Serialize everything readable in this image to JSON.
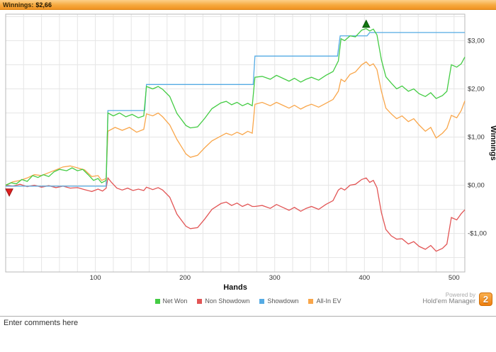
{
  "window": {
    "title_label": "Winnings:",
    "title_value": "$2,66"
  },
  "comments": {
    "text": "Enter comments here"
  },
  "branding": {
    "powered_by": "Powered by",
    "app_name": "Hold'em Manager",
    "badge": "2",
    "badge_color": "#ef7f0e"
  },
  "chart_data": {
    "type": "line",
    "title": "Winnings: $2,66",
    "xlabel": "Hands",
    "ylabel": "Winnings",
    "xlim": [
      0,
      512
    ],
    "ylim": [
      -1.8,
      3.55
    ],
    "x_grid_step": 20,
    "y_grid_step": 0.5,
    "grid_color": "#e5e5e5",
    "border_color": "#b8b8b8",
    "legend_position": "bottom",
    "x_ticks": [
      100,
      200,
      300,
      400,
      500
    ],
    "y_ticks": [
      {
        "v": 3,
        "label": "$3,00"
      },
      {
        "v": 2,
        "label": "$2,00"
      },
      {
        "v": 1,
        "label": "$1,00"
      },
      {
        "v": 0,
        "label": "$0,00"
      },
      {
        "v": -1,
        "label": "-$1,00"
      }
    ],
    "draw_order": [
      1,
      3,
      2,
      0
    ],
    "series": [
      {
        "name": "Net Won",
        "color": "#44cc44",
        "points": [
          [
            0,
            0
          ],
          [
            6,
            0.05
          ],
          [
            12,
            0.03
          ],
          [
            18,
            0.12
          ],
          [
            24,
            0.08
          ],
          [
            30,
            0.2
          ],
          [
            36,
            0.16
          ],
          [
            42,
            0.22
          ],
          [
            48,
            0.18
          ],
          [
            54,
            0.28
          ],
          [
            60,
            0.33
          ],
          [
            68,
            0.3
          ],
          [
            74,
            0.36
          ],
          [
            80,
            0.3
          ],
          [
            86,
            0.33
          ],
          [
            92,
            0.22
          ],
          [
            98,
            0.1
          ],
          [
            103,
            0.14
          ],
          [
            107,
            0.05
          ],
          [
            112,
            0.1
          ],
          [
            114,
            1.5
          ],
          [
            120,
            1.44
          ],
          [
            127,
            1.5
          ],
          [
            134,
            1.42
          ],
          [
            141,
            1.47
          ],
          [
            148,
            1.4
          ],
          [
            154,
            1.44
          ],
          [
            157,
            2.05
          ],
          [
            164,
            2.0
          ],
          [
            170,
            2.05
          ],
          [
            175,
            1.99
          ],
          [
            183,
            1.84
          ],
          [
            191,
            1.49
          ],
          [
            201,
            1.24
          ],
          [
            206,
            1.19
          ],
          [
            214,
            1.21
          ],
          [
            222,
            1.39
          ],
          [
            230,
            1.59
          ],
          [
            240,
            1.71
          ],
          [
            246,
            1.74
          ],
          [
            252,
            1.67
          ],
          [
            258,
            1.72
          ],
          [
            264,
            1.65
          ],
          [
            270,
            1.7
          ],
          [
            275,
            1.65
          ],
          [
            278,
            2.24
          ],
          [
            286,
            2.26
          ],
          [
            295,
            2.2
          ],
          [
            302,
            2.28
          ],
          [
            309,
            2.22
          ],
          [
            316,
            2.16
          ],
          [
            322,
            2.22
          ],
          [
            329,
            2.14
          ],
          [
            335,
            2.2
          ],
          [
            341,
            2.24
          ],
          [
            349,
            2.18
          ],
          [
            357,
            2.28
          ],
          [
            365,
            2.36
          ],
          [
            371,
            2.58
          ],
          [
            374,
            3.04
          ],
          [
            378,
            3.0
          ],
          [
            384,
            3.1
          ],
          [
            390,
            3.08
          ],
          [
            397,
            3.22
          ],
          [
            402,
            3.25
          ],
          [
            406,
            3.2
          ],
          [
            410,
            3.24
          ],
          [
            414,
            3.12
          ],
          [
            419,
            2.6
          ],
          [
            424,
            2.25
          ],
          [
            430,
            2.12
          ],
          [
            436,
            2.0
          ],
          [
            442,
            2.06
          ],
          [
            449,
            1.95
          ],
          [
            455,
            2.0
          ],
          [
            461,
            1.9
          ],
          [
            468,
            1.84
          ],
          [
            474,
            1.92
          ],
          [
            480,
            1.8
          ],
          [
            487,
            1.86
          ],
          [
            492,
            1.95
          ],
          [
            497,
            2.5
          ],
          [
            503,
            2.45
          ],
          [
            508,
            2.52
          ],
          [
            512,
            2.66
          ]
        ]
      },
      {
        "name": "Non Showdown",
        "color": "#e25555",
        "points": [
          [
            0,
            0
          ],
          [
            8,
            -0.02
          ],
          [
            16,
            0.02
          ],
          [
            24,
            -0.03
          ],
          [
            32,
            0.0
          ],
          [
            40,
            -0.04
          ],
          [
            48,
            -0.01
          ],
          [
            56,
            -0.05
          ],
          [
            64,
            -0.02
          ],
          [
            72,
            -0.06
          ],
          [
            80,
            -0.05
          ],
          [
            88,
            -0.09
          ],
          [
            96,
            -0.13
          ],
          [
            103,
            -0.08
          ],
          [
            108,
            -0.12
          ],
          [
            112,
            -0.06
          ],
          [
            114,
            0.15
          ],
          [
            118,
            0.06
          ],
          [
            124,
            -0.06
          ],
          [
            130,
            -0.1
          ],
          [
            136,
            -0.06
          ],
          [
            142,
            -0.11
          ],
          [
            148,
            -0.08
          ],
          [
            154,
            -0.11
          ],
          [
            157,
            -0.04
          ],
          [
            164,
            -0.09
          ],
          [
            170,
            -0.05
          ],
          [
            175,
            -0.1
          ],
          [
            183,
            -0.25
          ],
          [
            191,
            -0.6
          ],
          [
            201,
            -0.85
          ],
          [
            206,
            -0.9
          ],
          [
            214,
            -0.88
          ],
          [
            222,
            -0.7
          ],
          [
            230,
            -0.5
          ],
          [
            240,
            -0.38
          ],
          [
            246,
            -0.35
          ],
          [
            252,
            -0.42
          ],
          [
            258,
            -0.37
          ],
          [
            264,
            -0.44
          ],
          [
            270,
            -0.39
          ],
          [
            275,
            -0.44
          ],
          [
            278,
            -0.44
          ],
          [
            286,
            -0.42
          ],
          [
            295,
            -0.48
          ],
          [
            302,
            -0.4
          ],
          [
            309,
            -0.46
          ],
          [
            316,
            -0.52
          ],
          [
            322,
            -0.46
          ],
          [
            329,
            -0.54
          ],
          [
            335,
            -0.48
          ],
          [
            341,
            -0.44
          ],
          [
            349,
            -0.5
          ],
          [
            357,
            -0.4
          ],
          [
            365,
            -0.32
          ],
          [
            371,
            -0.1
          ],
          [
            374,
            -0.06
          ],
          [
            378,
            -0.1
          ],
          [
            384,
            0.0
          ],
          [
            390,
            0.02
          ],
          [
            397,
            0.12
          ],
          [
            402,
            0.15
          ],
          [
            406,
            0.06
          ],
          [
            410,
            0.1
          ],
          [
            414,
            -0.05
          ],
          [
            419,
            -0.57
          ],
          [
            424,
            -0.92
          ],
          [
            430,
            -1.05
          ],
          [
            436,
            -1.12
          ],
          [
            442,
            -1.11
          ],
          [
            449,
            -1.22
          ],
          [
            455,
            -1.17
          ],
          [
            461,
            -1.27
          ],
          [
            468,
            -1.33
          ],
          [
            474,
            -1.25
          ],
          [
            480,
            -1.37
          ],
          [
            487,
            -1.31
          ],
          [
            492,
            -1.22
          ],
          [
            497,
            -0.67
          ],
          [
            503,
            -0.72
          ],
          [
            508,
            -0.59
          ],
          [
            512,
            -0.51
          ]
        ]
      },
      {
        "name": "Showdown",
        "color": "#55abe4",
        "points": [
          [
            0,
            -0.02
          ],
          [
            112,
            -0.02
          ],
          [
            114,
            1.55
          ],
          [
            155,
            1.55
          ],
          [
            157,
            2.09
          ],
          [
            276,
            2.09
          ],
          [
            278,
            2.68
          ],
          [
            370,
            2.68
          ],
          [
            373,
            3.1
          ],
          [
            403,
            3.1
          ],
          [
            406,
            3.17
          ],
          [
            512,
            3.17
          ]
        ]
      },
      {
        "name": "All-In EV",
        "color": "#f9a64a",
        "points": [
          [
            0,
            0
          ],
          [
            8,
            0.07
          ],
          [
            16,
            0.1
          ],
          [
            24,
            0.15
          ],
          [
            32,
            0.22
          ],
          [
            40,
            0.2
          ],
          [
            48,
            0.26
          ],
          [
            56,
            0.32
          ],
          [
            64,
            0.38
          ],
          [
            72,
            0.4
          ],
          [
            80,
            0.36
          ],
          [
            88,
            0.32
          ],
          [
            96,
            0.18
          ],
          [
            103,
            0.2
          ],
          [
            107,
            0.1
          ],
          [
            112,
            0.14
          ],
          [
            114,
            1.12
          ],
          [
            122,
            1.2
          ],
          [
            130,
            1.14
          ],
          [
            138,
            1.2
          ],
          [
            146,
            1.1
          ],
          [
            154,
            1.16
          ],
          [
            157,
            1.48
          ],
          [
            164,
            1.44
          ],
          [
            170,
            1.5
          ],
          [
            175,
            1.42
          ],
          [
            183,
            1.25
          ],
          [
            191,
            0.95
          ],
          [
            201,
            0.65
          ],
          [
            206,
            0.58
          ],
          [
            214,
            0.62
          ],
          [
            222,
            0.78
          ],
          [
            230,
            0.92
          ],
          [
            240,
            1.02
          ],
          [
            246,
            1.08
          ],
          [
            252,
            1.04
          ],
          [
            258,
            1.1
          ],
          [
            264,
            1.05
          ],
          [
            270,
            1.12
          ],
          [
            275,
            1.08
          ],
          [
            278,
            1.68
          ],
          [
            286,
            1.72
          ],
          [
            295,
            1.65
          ],
          [
            302,
            1.72
          ],
          [
            309,
            1.66
          ],
          [
            316,
            1.6
          ],
          [
            322,
            1.66
          ],
          [
            329,
            1.58
          ],
          [
            335,
            1.64
          ],
          [
            341,
            1.68
          ],
          [
            349,
            1.62
          ],
          [
            357,
            1.7
          ],
          [
            365,
            1.78
          ],
          [
            371,
            1.95
          ],
          [
            374,
            2.2
          ],
          [
            378,
            2.15
          ],
          [
            384,
            2.3
          ],
          [
            390,
            2.35
          ],
          [
            397,
            2.5
          ],
          [
            402,
            2.56
          ],
          [
            406,
            2.48
          ],
          [
            410,
            2.52
          ],
          [
            414,
            2.4
          ],
          [
            419,
            1.95
          ],
          [
            424,
            1.6
          ],
          [
            430,
            1.48
          ],
          [
            436,
            1.38
          ],
          [
            442,
            1.44
          ],
          [
            449,
            1.32
          ],
          [
            455,
            1.38
          ],
          [
            461,
            1.25
          ],
          [
            468,
            1.12
          ],
          [
            474,
            1.2
          ],
          [
            480,
            0.98
          ],
          [
            487,
            1.08
          ],
          [
            492,
            1.18
          ],
          [
            497,
            1.45
          ],
          [
            503,
            1.4
          ],
          [
            508,
            1.55
          ],
          [
            512,
            1.75
          ]
        ]
      }
    ],
    "markers": [
      {
        "shape": "triangle-down",
        "color": "#dd2020",
        "edge": "#a01010",
        "x": 4,
        "y": -0.15
      },
      {
        "shape": "triangle-up",
        "color": "#117711",
        "edge": "#0a550a",
        "x": 402,
        "y": 3.35
      }
    ]
  }
}
